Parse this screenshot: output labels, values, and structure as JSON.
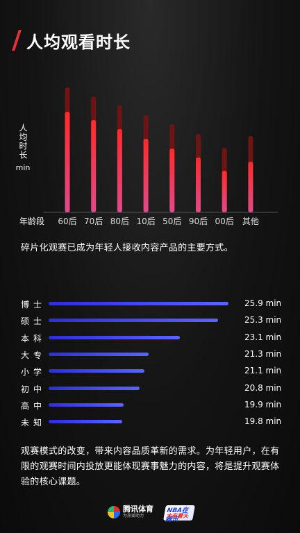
{
  "header": {
    "title": "人均观看时长"
  },
  "chart_data": [
    {
      "type": "bar",
      "title": "",
      "xlabel": "年龄段",
      "ylabel_text": "人均时长",
      "ylabel_unit": "min",
      "categories": [
        "60后",
        "70后",
        "80后",
        "10后",
        "50后",
        "90后",
        "00后",
        "其他"
      ],
      "values": [
        145,
        133,
        120,
        106,
        92,
        79,
        60,
        73
      ],
      "totals": [
        180,
        167,
        154,
        140,
        127,
        113,
        93,
        110
      ],
      "ylim": [
        0,
        190
      ],
      "colors": {
        "bar_top": "#ff2a2a",
        "bar_bottom": "#e04a8a",
        "bar_ghost": "#6e1414"
      }
    },
    {
      "type": "bar",
      "orientation": "horizontal",
      "categories": [
        "博士",
        "硕士",
        "本科",
        "大专",
        "小学",
        "初中",
        "高中",
        "未知"
      ],
      "values": [
        25.9,
        25.3,
        23.1,
        21.3,
        21.1,
        20.8,
        19.9,
        19.8
      ],
      "value_labels": [
        "25.9 min",
        "25.3 min",
        "23.1 min",
        "21.3 min",
        "21.1 min",
        "20.8 min",
        "19.9 min",
        "19.8 min"
      ],
      "unit": "min",
      "xlim": [
        15.6,
        26.8
      ],
      "colors": {
        "bar": "#3a3af0"
      }
    }
  ],
  "captions": {
    "first": "碎片化观赛已成为年轻人接收内容产品的主要方式。",
    "second": "观赛模式的改变，带来内容品质革新的需求。为年轻用户，在有限的观赛时间内投放更能体现赛事魅力的内容，将是提升观赛体验的核心课题。"
  },
  "footer": {
    "logo1_text": "腾讯体育",
    "logo1_sub": "为热爱助力",
    "logo2_line1": "NBA在腾讯",
    "logo2_line2": "大有看头"
  }
}
